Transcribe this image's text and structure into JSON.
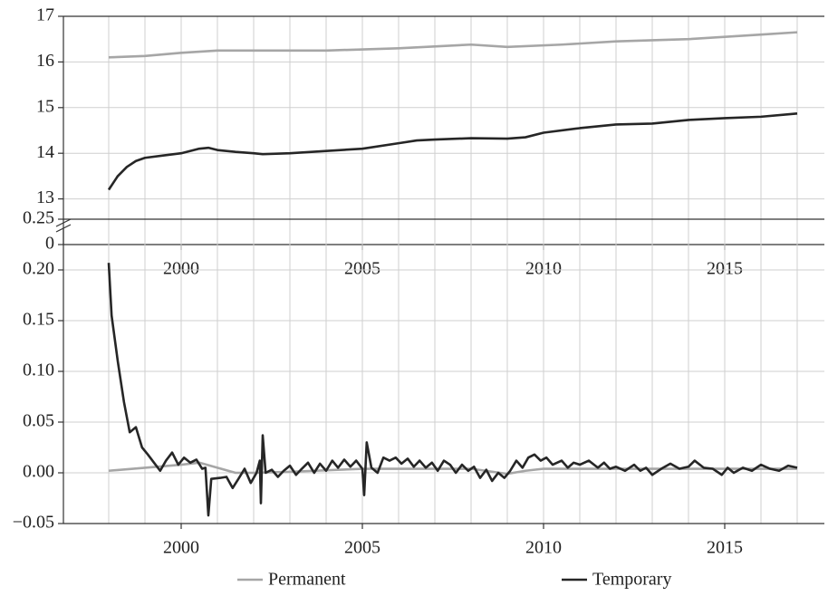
{
  "chart_data": [
    {
      "type": "line",
      "xlim": [
        1996.75,
        2017.75
      ],
      "xticks": [
        2000,
        2005,
        2010,
        2015
      ],
      "xgrid": [
        1998,
        1999,
        2000,
        2001,
        2002,
        2003,
        2004,
        2005,
        2006,
        2007,
        2008,
        2009,
        2010,
        2011,
        2012,
        2013,
        2014,
        2015,
        2016,
        2017
      ],
      "ylim": [
        0,
        17
      ],
      "yticks": [
        0,
        13,
        14,
        15,
        16,
        17
      ],
      "ybreak": [
        0,
        12
      ],
      "grid": true,
      "series": [
        {
          "color": "#a6a6a6",
          "x": [
            1998,
            1999,
            2000,
            2001,
            2002,
            2004,
            2006,
            2008,
            2009,
            2010.5,
            2012,
            2014,
            2016,
            2017
          ],
          "values": [
            16.1,
            16.13,
            16.2,
            16.25,
            16.25,
            16.25,
            16.3,
            16.38,
            16.33,
            16.38,
            16.45,
            16.5,
            16.6,
            16.65
          ]
        },
        {
          "color": "#262626",
          "x": [
            1998,
            1998.25,
            1998.5,
            1998.75,
            1999,
            1999.5,
            2000,
            2000.5,
            2000.75,
            2001,
            2001.5,
            2002,
            2002.25,
            2003,
            2004,
            2005,
            2006,
            2006.5,
            2007,
            2008,
            2009,
            2009.5,
            2010,
            2011,
            2012,
            2013,
            2014,
            2015,
            2016,
            2017
          ],
          "values": [
            13.2,
            13.5,
            13.7,
            13.83,
            13.9,
            13.95,
            14.0,
            14.1,
            14.12,
            14.07,
            14.03,
            14.0,
            13.98,
            14.0,
            14.05,
            14.1,
            14.22,
            14.28,
            14.3,
            14.33,
            14.32,
            14.35,
            14.45,
            14.55,
            14.63,
            14.65,
            14.73,
            14.77,
            14.8,
            14.87
          ]
        }
      ]
    },
    {
      "type": "line",
      "xlim": [
        1996.75,
        2017.75
      ],
      "xticks": [
        2000,
        2005,
        2010,
        2015
      ],
      "xgrid": [
        1998,
        1999,
        2000,
        2001,
        2002,
        2003,
        2004,
        2005,
        2006,
        2007,
        2008,
        2009,
        2010,
        2011,
        2012,
        2013,
        2014,
        2015,
        2016,
        2017
      ],
      "ylim": [
        -0.05,
        0.25
      ],
      "yticks": [
        {
          "value": -0.05,
          "label": "−0.05"
        },
        {
          "value": 0,
          "label": "0.00"
        },
        0.05,
        {
          "value": 0.1,
          "label": "0.10"
        },
        0.15,
        {
          "value": 0.2,
          "label": "0.20"
        },
        0.25
      ],
      "grid": true,
      "series": [
        {
          "name": "Permanent",
          "color": "#a6a6a6",
          "x": [
            1998,
            1999,
            2000,
            2000.5,
            2001,
            2001.5,
            2002,
            2003,
            2005,
            2007,
            2008,
            2009,
            2009.5,
            2010,
            2012,
            2014,
            2016,
            2017
          ],
          "values": [
            0.002,
            0.005,
            0.008,
            0.01,
            0.005,
            0.0,
            0.0,
            0.001,
            0.004,
            0.004,
            0.004,
            -0.001,
            0.002,
            0.004,
            0.004,
            0.004,
            0.004,
            0.004
          ]
        },
        {
          "name": "Temporary",
          "color": "#262626",
          "x": [
            1998.0,
            1998.08,
            1998.25,
            1998.42,
            1998.58,
            1998.75,
            1998.92,
            1999.08,
            1999.25,
            1999.42,
            1999.58,
            1999.75,
            1999.92,
            2000.08,
            2000.25,
            2000.42,
            2000.58,
            2000.67,
            2000.75,
            2000.83,
            2001.08,
            2001.25,
            2001.42,
            2001.58,
            2001.75,
            2001.92,
            2002.08,
            2002.17,
            2002.2,
            2002.25,
            2002.33,
            2002.5,
            2002.67,
            2002.83,
            2003.0,
            2003.17,
            2003.33,
            2003.5,
            2003.67,
            2003.83,
            2004.0,
            2004.17,
            2004.33,
            2004.5,
            2004.67,
            2004.83,
            2005.0,
            2005.05,
            2005.12,
            2005.25,
            2005.42,
            2005.58,
            2005.75,
            2005.92,
            2006.08,
            2006.25,
            2006.42,
            2006.58,
            2006.75,
            2006.92,
            2007.08,
            2007.25,
            2007.42,
            2007.58,
            2007.75,
            2007.92,
            2008.08,
            2008.25,
            2008.42,
            2008.58,
            2008.75,
            2008.92,
            2009.08,
            2009.25,
            2009.42,
            2009.58,
            2009.75,
            2009.92,
            2010.08,
            2010.25,
            2010.5,
            2010.67,
            2010.83,
            2011.0,
            2011.25,
            2011.5,
            2011.67,
            2011.83,
            2012.0,
            2012.25,
            2012.5,
            2012.67,
            2012.83,
            2013.0,
            2013.25,
            2013.5,
            2013.75,
            2014.0,
            2014.17,
            2014.42,
            2014.67,
            2014.92,
            2015.08,
            2015.25,
            2015.5,
            2015.75,
            2016.0,
            2016.25,
            2016.5,
            2016.75,
            2017.0
          ],
          "values": [
            0.207,
            0.155,
            0.11,
            0.07,
            0.04,
            0.045,
            0.025,
            0.018,
            0.01,
            0.002,
            0.012,
            0.02,
            0.008,
            0.015,
            0.01,
            0.013,
            0.004,
            0.005,
            -0.042,
            -0.006,
            -0.005,
            -0.004,
            -0.015,
            -0.006,
            0.004,
            -0.01,
            0.0,
            0.012,
            -0.03,
            0.037,
            0.0,
            0.003,
            -0.004,
            0.002,
            0.007,
            -0.002,
            0.004,
            0.01,
            0.0,
            0.009,
            0.002,
            0.012,
            0.005,
            0.013,
            0.006,
            0.012,
            0.004,
            -0.022,
            0.03,
            0.005,
            0.0,
            0.015,
            0.012,
            0.015,
            0.009,
            0.014,
            0.006,
            0.012,
            0.005,
            0.01,
            0.002,
            0.012,
            0.008,
            0.0,
            0.008,
            0.002,
            0.006,
            -0.005,
            0.003,
            -0.008,
            0.0,
            -0.005,
            0.002,
            0.012,
            0.005,
            0.015,
            0.018,
            0.012,
            0.015,
            0.008,
            0.012,
            0.005,
            0.01,
            0.008,
            0.012,
            0.005,
            0.01,
            0.004,
            0.006,
            0.002,
            0.008,
            0.002,
            0.005,
            -0.002,
            0.004,
            0.009,
            0.004,
            0.006,
            0.012,
            0.005,
            0.004,
            -0.002,
            0.005,
            0.0,
            0.005,
            0.002,
            0.008,
            0.004,
            0.002,
            0.007,
            0.005
          ]
        }
      ]
    }
  ]
}
